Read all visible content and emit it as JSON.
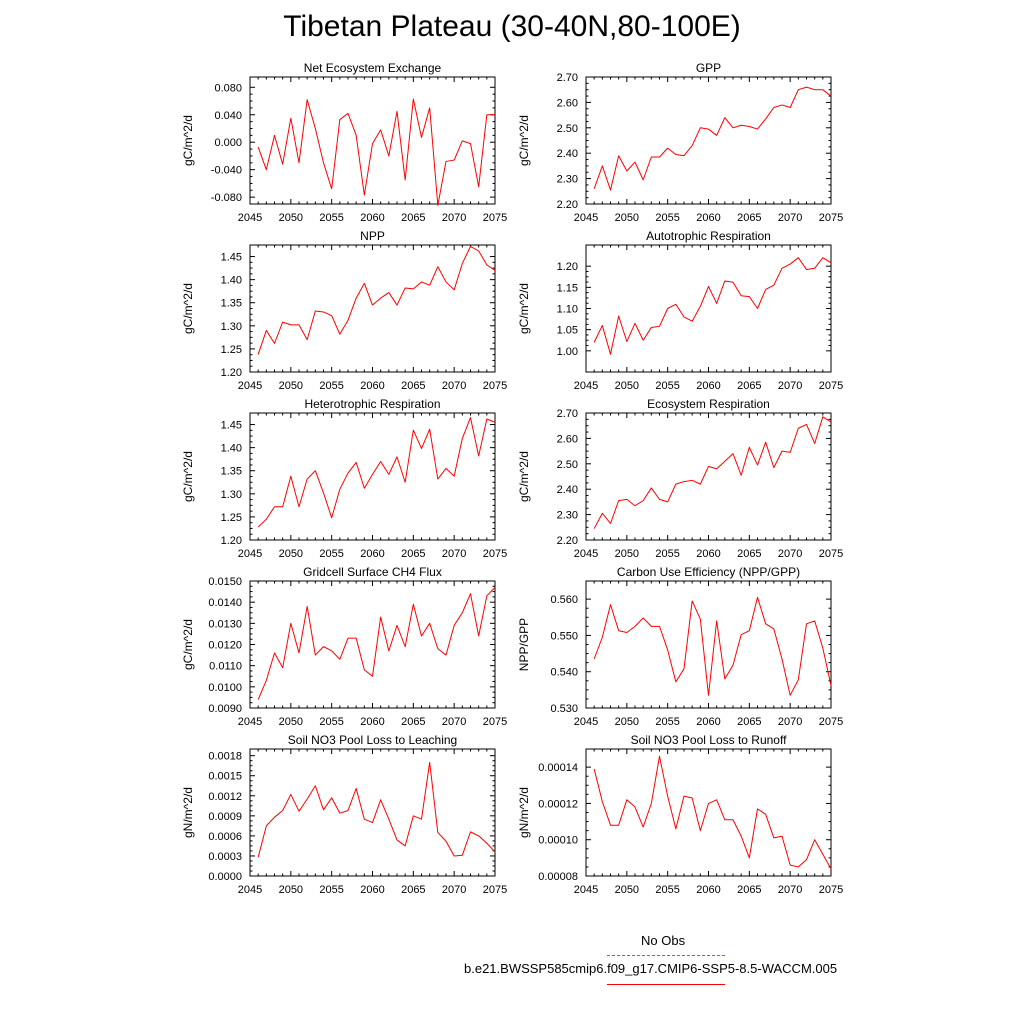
{
  "title": "Tibetan Plateau (30-40N,80-100E)",
  "colors": {
    "model_line": "#ff0000",
    "obs_line": "#6666cc",
    "axis": "#000000"
  },
  "legend": {
    "obs_label": "No Obs",
    "model_label": "b.e21.BWSSP585cmip6.f09_g17.CMIP6-SSP5-8.5-WACCM.005"
  },
  "chart_data": [
    {
      "type": "line",
      "title": "Net Ecosystem Exchange",
      "ylabel": "gC/m^2/d",
      "xlim": [
        2045,
        2075
      ],
      "xticks": [
        2045,
        2050,
        2055,
        2060,
        2065,
        2070,
        2075
      ],
      "xtick_labels": [
        "2045",
        "2050",
        "2055",
        "2060",
        "2065",
        "2070",
        "2075"
      ],
      "ylim": [
        -0.09,
        0.095
      ],
      "yticks": [
        -0.08,
        -0.04,
        0.0,
        0.04,
        0.08
      ],
      "ytick_labels": [
        "-0.080",
        "-0.040",
        "0.000",
        "0.040",
        "0.080"
      ],
      "x": [
        2046,
        2047,
        2048,
        2049,
        2050,
        2051,
        2052,
        2053,
        2054,
        2055,
        2056,
        2057,
        2058,
        2059,
        2060,
        2061,
        2062,
        2063,
        2064,
        2065,
        2066,
        2067,
        2068,
        2069,
        2070,
        2071,
        2072,
        2073,
        2074,
        2075
      ],
      "series": [
        {
          "name": "b.e21.BWSSP585cmip6.f09_g17.CMIP6-SSP5-8.5-WACCM.005",
          "values": [
            -0.007,
            -0.04,
            0.01,
            -0.032,
            0.035,
            -0.03,
            0.062,
            0.02,
            -0.03,
            -0.068,
            0.033,
            0.042,
            0.01,
            -0.077,
            -0.002,
            0.018,
            -0.02,
            0.045,
            -0.055,
            0.063,
            0.007,
            0.05,
            -0.092,
            -0.028,
            -0.026,
            0.002,
            -0.002,
            -0.065,
            0.04,
            0.04
          ]
        }
      ]
    },
    {
      "type": "line",
      "title": "GPP",
      "ylabel": "gC/m^2/d",
      "xlim": [
        2045,
        2075
      ],
      "xticks": [
        2045,
        2050,
        2055,
        2060,
        2065,
        2070,
        2075
      ],
      "xtick_labels": [
        "2045",
        "2050",
        "2055",
        "2060",
        "2065",
        "2070",
        "2075"
      ],
      "ylim": [
        2.2,
        2.7
      ],
      "yticks": [
        2.2,
        2.3,
        2.4,
        2.5,
        2.6,
        2.7
      ],
      "ytick_labels": [
        "2.20",
        "2.30",
        "2.40",
        "2.50",
        "2.60",
        "2.70"
      ],
      "x": [
        2046,
        2047,
        2048,
        2049,
        2050,
        2051,
        2052,
        2053,
        2054,
        2055,
        2056,
        2057,
        2058,
        2059,
        2060,
        2061,
        2062,
        2063,
        2064,
        2065,
        2066,
        2067,
        2068,
        2069,
        2070,
        2071,
        2072,
        2073,
        2074,
        2075
      ],
      "series": [
        {
          "name": "b.e21.BWSSP585cmip6.f09_g17.CMIP6-SSP5-8.5-WACCM.005",
          "values": [
            2.26,
            2.35,
            2.255,
            2.39,
            2.33,
            2.365,
            2.295,
            2.385,
            2.385,
            2.42,
            2.395,
            2.39,
            2.43,
            2.5,
            2.495,
            2.47,
            2.54,
            2.5,
            2.51,
            2.505,
            2.495,
            2.535,
            2.58,
            2.59,
            2.58,
            2.65,
            2.66,
            2.65,
            2.65,
            2.625
          ]
        }
      ]
    },
    {
      "type": "line",
      "title": "NPP",
      "ylabel": "gC/m^2/d",
      "xlim": [
        2045,
        2075
      ],
      "xticks": [
        2045,
        2050,
        2055,
        2060,
        2065,
        2070,
        2075
      ],
      "xtick_labels": [
        "2045",
        "2050",
        "2055",
        "2060",
        "2065",
        "2070",
        "2075"
      ],
      "ylim": [
        1.2,
        1.475
      ],
      "yticks": [
        1.2,
        1.25,
        1.3,
        1.35,
        1.4,
        1.45
      ],
      "ytick_labels": [
        "1.20",
        "1.25",
        "1.30",
        "1.35",
        "1.40",
        "1.45"
      ],
      "x": [
        2046,
        2047,
        2048,
        2049,
        2050,
        2051,
        2052,
        2053,
        2054,
        2055,
        2056,
        2057,
        2058,
        2059,
        2060,
        2061,
        2062,
        2063,
        2064,
        2065,
        2066,
        2067,
        2068,
        2069,
        2070,
        2071,
        2072,
        2073,
        2074,
        2075
      ],
      "series": [
        {
          "name": "b.e21.BWSSP585cmip6.f09_g17.CMIP6-SSP5-8.5-WACCM.005",
          "values": [
            1.238,
            1.29,
            1.262,
            1.308,
            1.302,
            1.302,
            1.27,
            1.332,
            1.33,
            1.322,
            1.282,
            1.312,
            1.36,
            1.392,
            1.345,
            1.36,
            1.372,
            1.345,
            1.382,
            1.38,
            1.395,
            1.388,
            1.428,
            1.395,
            1.378,
            1.435,
            1.472,
            1.462,
            1.432,
            1.42
          ]
        }
      ]
    },
    {
      "type": "line",
      "title": "Autotrophic Respiration",
      "ylabel": "gC/m^2/d",
      "xlim": [
        2045,
        2075
      ],
      "xticks": [
        2045,
        2050,
        2055,
        2060,
        2065,
        2070,
        2075
      ],
      "xtick_labels": [
        "2045",
        "2050",
        "2055",
        "2060",
        "2065",
        "2070",
        "2075"
      ],
      "ylim": [
        0.95,
        1.25
      ],
      "yticks": [
        1.0,
        1.05,
        1.1,
        1.15,
        1.2
      ],
      "ytick_labels": [
        "1.00",
        "1.05",
        "1.10",
        "1.15",
        "1.20"
      ],
      "x": [
        2046,
        2047,
        2048,
        2049,
        2050,
        2051,
        2052,
        2053,
        2054,
        2055,
        2056,
        2057,
        2058,
        2059,
        2060,
        2061,
        2062,
        2063,
        2064,
        2065,
        2066,
        2067,
        2068,
        2069,
        2070,
        2071,
        2072,
        2073,
        2074,
        2075
      ],
      "series": [
        {
          "name": "b.e21.BWSSP585cmip6.f09_g17.CMIP6-SSP5-8.5-WACCM.005",
          "values": [
            1.02,
            1.06,
            0.992,
            1.082,
            1.022,
            1.065,
            1.025,
            1.055,
            1.058,
            1.1,
            1.11,
            1.08,
            1.07,
            1.105,
            1.152,
            1.112,
            1.165,
            1.162,
            1.13,
            1.128,
            1.1,
            1.145,
            1.155,
            1.195,
            1.205,
            1.22,
            1.192,
            1.195,
            1.22,
            1.208
          ]
        }
      ]
    },
    {
      "type": "line",
      "title": "Heterotrophic Respiration",
      "ylabel": "gC/m^2/d",
      "xlim": [
        2045,
        2075
      ],
      "xticks": [
        2045,
        2050,
        2055,
        2060,
        2065,
        2070,
        2075
      ],
      "xtick_labels": [
        "2045",
        "2050",
        "2055",
        "2060",
        "2065",
        "2070",
        "2075"
      ],
      "ylim": [
        1.2,
        1.475
      ],
      "yticks": [
        1.2,
        1.25,
        1.3,
        1.35,
        1.4,
        1.45
      ],
      "ytick_labels": [
        "1.20",
        "1.25",
        "1.30",
        "1.35",
        "1.40",
        "1.45"
      ],
      "x": [
        2046,
        2047,
        2048,
        2049,
        2050,
        2051,
        2052,
        2053,
        2054,
        2055,
        2056,
        2057,
        2058,
        2059,
        2060,
        2061,
        2062,
        2063,
        2064,
        2065,
        2066,
        2067,
        2068,
        2069,
        2070,
        2071,
        2072,
        2073,
        2074,
        2075
      ],
      "series": [
        {
          "name": "b.e21.BWSSP585cmip6.f09_g17.CMIP6-SSP5-8.5-WACCM.005",
          "values": [
            1.228,
            1.245,
            1.272,
            1.272,
            1.338,
            1.272,
            1.332,
            1.35,
            1.302,
            1.248,
            1.31,
            1.345,
            1.368,
            1.312,
            1.342,
            1.37,
            1.342,
            1.38,
            1.325,
            1.438,
            1.398,
            1.44,
            1.332,
            1.355,
            1.338,
            1.42,
            1.465,
            1.382,
            1.462,
            1.455
          ]
        }
      ]
    },
    {
      "type": "line",
      "title": "Ecosystem Respiration",
      "ylabel": "gC/m^2/d",
      "xlim": [
        2045,
        2075
      ],
      "xticks": [
        2045,
        2050,
        2055,
        2060,
        2065,
        2070,
        2075
      ],
      "xtick_labels": [
        "2045",
        "2050",
        "2055",
        "2060",
        "2065",
        "2070",
        "2075"
      ],
      "ylim": [
        2.2,
        2.7
      ],
      "yticks": [
        2.2,
        2.3,
        2.4,
        2.5,
        2.6,
        2.7
      ],
      "ytick_labels": [
        "2.20",
        "2.30",
        "2.40",
        "2.50",
        "2.60",
        "2.70"
      ],
      "x": [
        2046,
        2047,
        2048,
        2049,
        2050,
        2051,
        2052,
        2053,
        2054,
        2055,
        2056,
        2057,
        2058,
        2059,
        2060,
        2061,
        2062,
        2063,
        2064,
        2065,
        2066,
        2067,
        2068,
        2069,
        2070,
        2071,
        2072,
        2073,
        2074,
        2075
      ],
      "series": [
        {
          "name": "b.e21.BWSSP585cmip6.f09_g17.CMIP6-SSP5-8.5-WACCM.005",
          "values": [
            2.245,
            2.305,
            2.265,
            2.355,
            2.36,
            2.335,
            2.355,
            2.405,
            2.36,
            2.35,
            2.42,
            2.43,
            2.435,
            2.42,
            2.49,
            2.48,
            2.51,
            2.54,
            2.455,
            2.565,
            2.495,
            2.585,
            2.485,
            2.55,
            2.545,
            2.64,
            2.655,
            2.58,
            2.685,
            2.665
          ]
        }
      ]
    },
    {
      "type": "line",
      "title": "Gridcell Surface CH4 Flux",
      "ylabel": "gC/m^2/d",
      "xlim": [
        2045,
        2075
      ],
      "xticks": [
        2045,
        2050,
        2055,
        2060,
        2065,
        2070,
        2075
      ],
      "xtick_labels": [
        "2045",
        "2050",
        "2055",
        "2060",
        "2065",
        "2070",
        "2075"
      ],
      "ylim": [
        0.009,
        0.015
      ],
      "yticks": [
        0.009,
        0.01,
        0.011,
        0.012,
        0.013,
        0.014,
        0.015
      ],
      "ytick_labels": [
        "0.0090",
        "0.0100",
        "0.0110",
        "0.0120",
        "0.0130",
        "0.0140",
        "0.0150"
      ],
      "x": [
        2046,
        2047,
        2048,
        2049,
        2050,
        2051,
        2052,
        2053,
        2054,
        2055,
        2056,
        2057,
        2058,
        2059,
        2060,
        2061,
        2062,
        2063,
        2064,
        2065,
        2066,
        2067,
        2068,
        2069,
        2070,
        2071,
        2072,
        2073,
        2074,
        2075
      ],
      "series": [
        {
          "name": "b.e21.BWSSP585cmip6.f09_g17.CMIP6-SSP5-8.5-WACCM.005",
          "values": [
            0.0094,
            0.0103,
            0.0116,
            0.0109,
            0.013,
            0.0116,
            0.0138,
            0.0115,
            0.0119,
            0.0117,
            0.0113,
            0.0123,
            0.0123,
            0.0108,
            0.0105,
            0.0133,
            0.0117,
            0.0129,
            0.0119,
            0.0139,
            0.0124,
            0.013,
            0.0118,
            0.0115,
            0.0129,
            0.0135,
            0.0144,
            0.0124,
            0.0143,
            0.0147
          ]
        }
      ]
    },
    {
      "type": "line",
      "title": "Carbon Use Efficiency (NPP/GPP)",
      "ylabel": "NPP/GPP",
      "xlim": [
        2045,
        2075
      ],
      "xticks": [
        2045,
        2050,
        2055,
        2060,
        2065,
        2070,
        2075
      ],
      "xtick_labels": [
        "2045",
        "2050",
        "2055",
        "2060",
        "2065",
        "2070",
        "2075"
      ],
      "ylim": [
        0.53,
        0.565
      ],
      "yticks": [
        0.53,
        0.54,
        0.55,
        0.56
      ],
      "ytick_labels": [
        "0.530",
        "0.540",
        "0.550",
        "0.560"
      ],
      "x": [
        2046,
        2047,
        2048,
        2049,
        2050,
        2051,
        2052,
        2053,
        2054,
        2055,
        2056,
        2057,
        2058,
        2059,
        2060,
        2061,
        2062,
        2063,
        2064,
        2065,
        2066,
        2067,
        2068,
        2069,
        2070,
        2071,
        2072,
        2073,
        2074,
        2075
      ],
      "series": [
        {
          "name": "b.e21.BWSSP585cmip6.f09_g17.CMIP6-SSP5-8.5-WACCM.005",
          "values": [
            0.5435,
            0.5495,
            0.5585,
            0.5513,
            0.5508,
            0.5525,
            0.5548,
            0.5525,
            0.5525,
            0.546,
            0.5372,
            0.5408,
            0.5595,
            0.5545,
            0.5335,
            0.554,
            0.538,
            0.5418,
            0.5502,
            0.5513,
            0.5605,
            0.5532,
            0.5518,
            0.5435,
            0.5335,
            0.5378,
            0.5532,
            0.554,
            0.5465,
            0.5362
          ]
        }
      ]
    },
    {
      "type": "line",
      "title": "Soil NO3 Pool Loss to Leaching",
      "ylabel": "gN/m^2/d",
      "xlim": [
        2045,
        2075
      ],
      "xticks": [
        2045,
        2050,
        2055,
        2060,
        2065,
        2070,
        2075
      ],
      "xtick_labels": [
        "2045",
        "2050",
        "2055",
        "2060",
        "2065",
        "2070",
        "2075"
      ],
      "ylim": [
        0.0,
        0.0019
      ],
      "yticks": [
        0.0,
        0.0003,
        0.0006,
        0.0009,
        0.0012,
        0.0015,
        0.0018
      ],
      "ytick_labels": [
        "0.0000",
        "0.0003",
        "0.0006",
        "0.0009",
        "0.0012",
        "0.0015",
        "0.0018"
      ],
      "x": [
        2046,
        2047,
        2048,
        2049,
        2050,
        2051,
        2052,
        2053,
        2054,
        2055,
        2056,
        2057,
        2058,
        2059,
        2060,
        2061,
        2062,
        2063,
        2064,
        2065,
        2066,
        2067,
        2068,
        2069,
        2070,
        2071,
        2072,
        2073,
        2074,
        2075
      ],
      "series": [
        {
          "name": "b.e21.BWSSP585cmip6.f09_g17.CMIP6-SSP5-8.5-WACCM.005",
          "values": [
            0.00028,
            0.00075,
            0.00088,
            0.00098,
            0.00122,
            0.00097,
            0.00115,
            0.00135,
            0.00099,
            0.00117,
            0.00094,
            0.00098,
            0.00131,
            0.00085,
            0.0008,
            0.00114,
            0.00085,
            0.00054,
            0.00045,
            0.0009,
            0.00085,
            0.0017,
            0.00065,
            0.00052,
            0.0003,
            0.00031,
            0.00066,
            0.0006,
            0.00049,
            0.00036
          ]
        }
      ]
    },
    {
      "type": "line",
      "title": "Soil NO3 Pool Loss to Runoff",
      "ylabel": "gN/m^2/d",
      "xlim": [
        2045,
        2075
      ],
      "xticks": [
        2045,
        2050,
        2055,
        2060,
        2065,
        2070,
        2075
      ],
      "xtick_labels": [
        "2045",
        "2050",
        "2055",
        "2060",
        "2065",
        "2070",
        "2075"
      ],
      "ylim": [
        8e-05,
        0.00015
      ],
      "yticks": [
        8e-05,
        0.0001,
        0.00012,
        0.00014
      ],
      "ytick_labels": [
        "0.00008",
        "0.00010",
        "0.00012",
        "0.00014"
      ],
      "x": [
        2046,
        2047,
        2048,
        2049,
        2050,
        2051,
        2052,
        2053,
        2054,
        2055,
        2056,
        2057,
        2058,
        2059,
        2060,
        2061,
        2062,
        2063,
        2064,
        2065,
        2066,
        2067,
        2068,
        2069,
        2070,
        2071,
        2072,
        2073,
        2074,
        2075
      ],
      "series": [
        {
          "name": "b.e21.BWSSP585cmip6.f09_g17.CMIP6-SSP5-8.5-WACCM.005",
          "values": [
            0.000139,
            0.000121,
            0.000108,
            0.000108,
            0.000122,
            0.000118,
            0.000107,
            0.00012,
            0.000146,
            0.000124,
            0.000106,
            0.000124,
            0.000123,
            0.000105,
            0.00012,
            0.000122,
            0.000111,
            0.000111,
            0.000102,
            9e-05,
            0.000117,
            0.000114,
            0.000101,
            0.000102,
            8.6e-05,
            8.5e-05,
            8.9e-05,
            0.0001,
            9.2e-05,
            8.4e-05
          ]
        }
      ]
    }
  ]
}
